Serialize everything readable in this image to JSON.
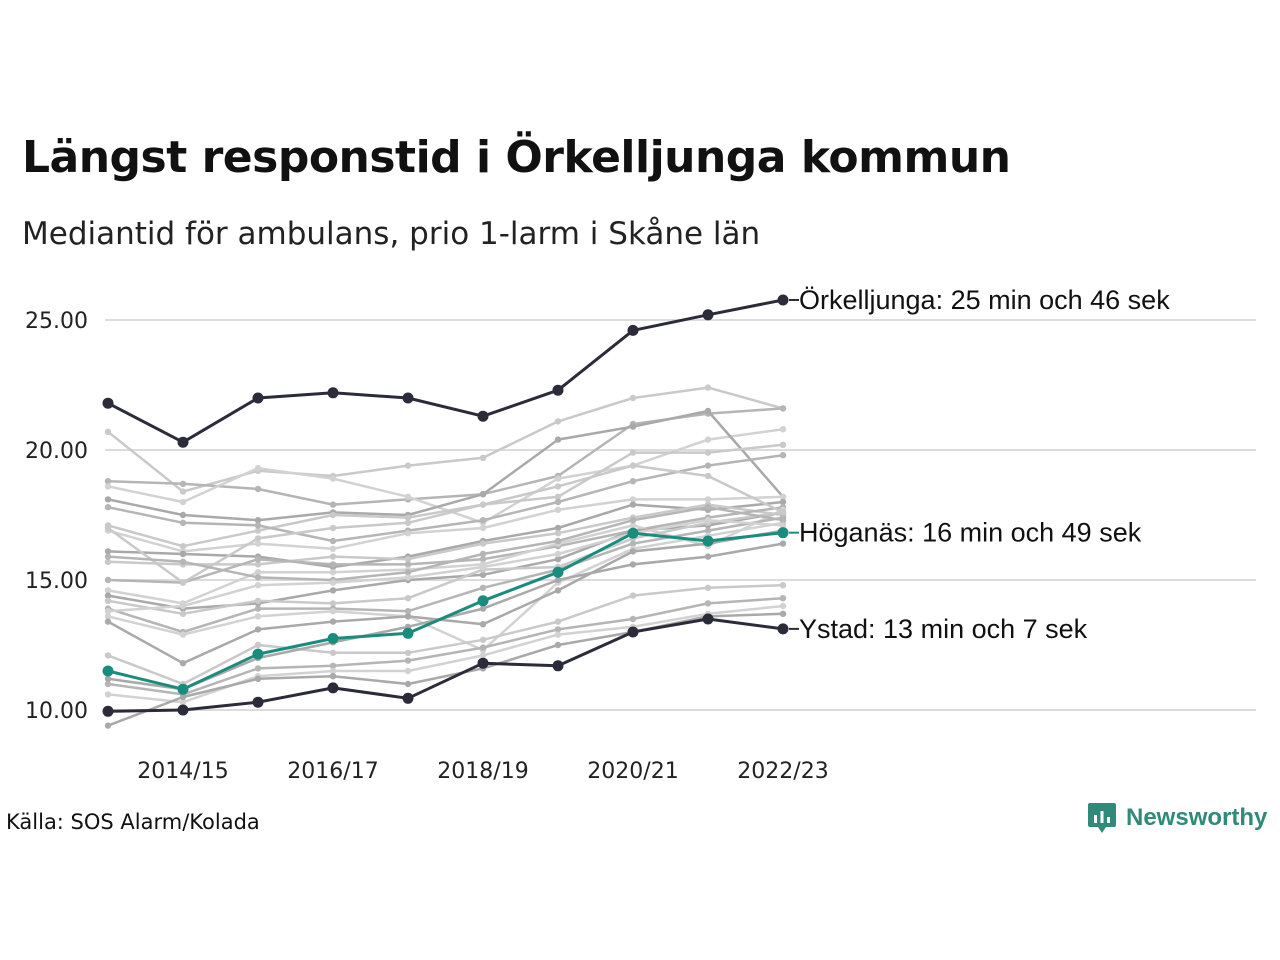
{
  "header": {
    "title": "Längst responstid i Örkelljunga kommun",
    "subtitle": "Mediantid för ambulans, prio 1-larm i Skåne län"
  },
  "footer": {
    "source": "Källa: SOS Alarm/Kolada",
    "brand": "Newsworthy"
  },
  "colors": {
    "highlight_dark": "#2b2b3a",
    "highlight_teal": "#1a8c7e",
    "background_series": "#c4c4c4",
    "gridline": "#dcdcdc",
    "brand": "#2f8a79"
  },
  "chart_data": {
    "type": "line",
    "x": [
      "2013/14",
      "2014/15",
      "2015/16",
      "2016/17",
      "2017/18",
      "2018/19",
      "2019/20",
      "2020/21",
      "2021/22",
      "2022/23"
    ],
    "x_tick_labels": [
      "2014/15",
      "2016/17",
      "2018/19",
      "2020/21",
      "2022/23"
    ],
    "y_ticks": [
      10,
      15,
      20,
      25
    ],
    "y_tick_labels": [
      "10.00",
      "15.00",
      "20.00",
      "25.00"
    ],
    "ylim": [
      9.4,
      26.5
    ],
    "grid": "horizontal",
    "highlighted_series": [
      {
        "name": "Örkelljunga",
        "label": "Örkelljunga: 25 min och 46 sek",
        "color": "#2b2b3a",
        "values": [
          21.8,
          20.3,
          22.0,
          22.2,
          22.0,
          21.3,
          22.3,
          24.6,
          25.2,
          25.77
        ]
      },
      {
        "name": "Höganäs",
        "label": "Höganäs: 16 min och 49 sek",
        "color": "#1a8c7e",
        "values": [
          11.5,
          10.8,
          12.15,
          12.75,
          12.95,
          14.2,
          15.3,
          16.8,
          16.5,
          16.82
        ]
      },
      {
        "name": "Ystad",
        "label": "Ystad: 13 min och 7 sek",
        "color": "#2b2b3a",
        "values": [
          9.95,
          10.0,
          10.3,
          10.85,
          10.45,
          11.8,
          11.7,
          13.0,
          13.5,
          13.12
        ]
      }
    ],
    "background_series": [
      [
        20.7,
        18.4,
        19.2,
        19.0,
        19.4,
        19.7,
        21.1,
        22.0,
        22.4,
        21.6
      ],
      [
        18.8,
        18.7,
        18.5,
        17.9,
        18.1,
        18.3,
        19.0,
        21.0,
        21.4,
        21.6
      ],
      [
        18.6,
        18.0,
        19.3,
        18.9,
        18.2,
        17.2,
        18.9,
        19.4,
        20.4,
        20.8
      ],
      [
        18.1,
        17.5,
        17.3,
        17.6,
        17.5,
        18.3,
        20.4,
        20.9,
        21.5,
        18.2
      ],
      [
        17.1,
        16.3,
        16.9,
        17.5,
        17.4,
        17.9,
        18.2,
        19.9,
        19.9,
        20.2
      ],
      [
        17.8,
        17.2,
        17.1,
        16.5,
        16.9,
        17.3,
        18.0,
        18.8,
        19.4,
        19.8
      ],
      [
        16.9,
        16.1,
        16.4,
        16.2,
        16.8,
        17.0,
        17.7,
        18.1,
        18.1,
        18.2
      ],
      [
        16.1,
        16.0,
        15.9,
        15.5,
        15.9,
        16.5,
        17.0,
        17.9,
        17.7,
        18.0
      ],
      [
        15.7,
        15.6,
        15.6,
        15.9,
        15.8,
        16.4,
        16.8,
        17.4,
        17.9,
        17.5
      ],
      [
        15.0,
        14.9,
        15.8,
        15.6,
        15.6,
        15.8,
        16.3,
        16.9,
        17.4,
        17.8
      ],
      [
        14.6,
        14.1,
        15.3,
        15.3,
        15.4,
        15.6,
        16.4,
        17.1,
        16.3,
        17.7
      ],
      [
        14.4,
        13.9,
        14.1,
        14.6,
        15.0,
        15.2,
        15.8,
        16.9,
        17.1,
        17.6
      ],
      [
        14.2,
        13.7,
        14.2,
        14.1,
        14.3,
        15.4,
        15.5,
        16.6,
        17.2,
        17.6
      ],
      [
        13.9,
        13.0,
        13.9,
        13.9,
        13.8,
        14.7,
        15.4,
        16.4,
        16.9,
        17.4
      ],
      [
        13.6,
        12.9,
        13.6,
        13.8,
        13.6,
        12.3,
        14.9,
        16.2,
        16.7,
        17.2
      ],
      [
        13.4,
        11.8,
        13.1,
        13.4,
        13.6,
        13.3,
        14.6,
        16.1,
        16.4,
        16.9
      ],
      [
        12.1,
        11.0,
        12.5,
        12.2,
        12.2,
        12.7,
        13.4,
        14.4,
        14.7,
        14.8
      ],
      [
        11.0,
        10.6,
        11.6,
        11.7,
        11.9,
        12.4,
        13.1,
        13.5,
        14.1,
        14.3
      ],
      [
        10.6,
        10.3,
        11.3,
        11.5,
        11.5,
        12.1,
        12.9,
        13.2,
        13.7,
        14.0
      ],
      [
        9.4,
        10.5,
        11.2,
        11.3,
        11.0,
        11.6,
        12.5,
        13.0,
        13.6,
        13.7
      ],
      [
        17.0,
        14.9,
        16.6,
        17.0,
        17.2,
        17.9,
        18.6,
        19.4,
        19.0,
        17.6
      ],
      [
        15.9,
        15.7,
        15.1,
        15.0,
        15.3,
        16.0,
        16.5,
        17.3,
        17.8,
        17.3
      ],
      [
        13.8,
        14.0,
        14.8,
        14.9,
        15.1,
        15.5,
        16.0,
        16.8,
        17.3,
        17.1
      ],
      [
        11.2,
        10.8,
        12.0,
        12.6,
        13.2,
        13.9,
        15.0,
        15.6,
        15.9,
        16.4
      ]
    ]
  }
}
